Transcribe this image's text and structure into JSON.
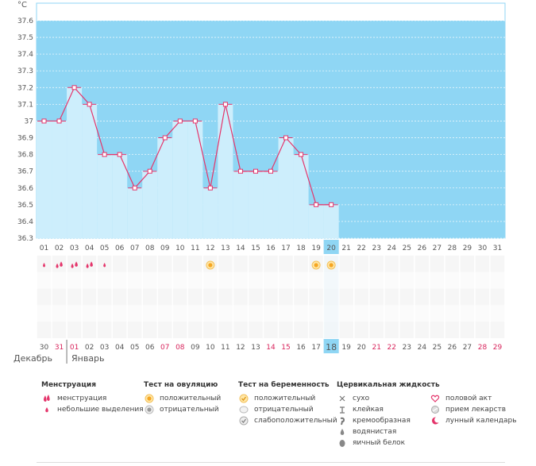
{
  "chart_data": {
    "type": "line",
    "unit_label": "°C",
    "ylim": [
      36.3,
      37.6
    ],
    "y_ticks": [
      "36.3",
      "36.4",
      "36.5",
      "36.6",
      "36.7",
      "36.8",
      "36.9",
      "37",
      "37.1",
      "37.2",
      "37.3",
      "37.4",
      "37.5",
      "37.6"
    ],
    "day_labels": [
      "01",
      "02",
      "03",
      "04",
      "05",
      "06",
      "07",
      "08",
      "09",
      "10",
      "11",
      "12",
      "13",
      "14",
      "15",
      "16",
      "17",
      "18",
      "19",
      "20",
      "21",
      "22",
      "23",
      "24",
      "25",
      "26",
      "27",
      "28",
      "29",
      "30",
      "31"
    ],
    "highlighted_day_index": 19,
    "temperatures": [
      37.0,
      37.0,
      37.2,
      37.1,
      36.8,
      36.8,
      36.6,
      36.7,
      36.9,
      37.0,
      37.0,
      36.6,
      37.1,
      36.7,
      36.7,
      36.7,
      36.9,
      36.8,
      36.5,
      36.5
    ],
    "menstruation_marks": [
      {
        "day_index": 0,
        "type": "light"
      },
      {
        "day_index": 1,
        "type": "menstruation"
      },
      {
        "day_index": 2,
        "type": "menstruation"
      },
      {
        "day_index": 3,
        "type": "menstruation"
      },
      {
        "day_index": 4,
        "type": "light"
      }
    ],
    "ovulation_marks": [
      {
        "day_index": 11,
        "type": "positive"
      },
      {
        "day_index": 18,
        "type": "positive"
      },
      {
        "day_index": 19,
        "type": "positive"
      }
    ],
    "cycle_days": [
      {
        "label": "30",
        "red": false
      },
      {
        "label": "31",
        "red": true
      },
      {
        "label": "01",
        "red": true
      },
      {
        "label": "02",
        "red": false
      },
      {
        "label": "03",
        "red": false
      },
      {
        "label": "04",
        "red": false
      },
      {
        "label": "05",
        "red": false
      },
      {
        "label": "06",
        "red": false
      },
      {
        "label": "07",
        "red": true
      },
      {
        "label": "08",
        "red": true
      },
      {
        "label": "09",
        "red": false
      },
      {
        "label": "10",
        "red": false
      },
      {
        "label": "11",
        "red": false
      },
      {
        "label": "12",
        "red": false
      },
      {
        "label": "13",
        "red": false
      },
      {
        "label": "14",
        "red": true
      },
      {
        "label": "15",
        "red": true
      },
      {
        "label": "16",
        "red": false
      },
      {
        "label": "17",
        "red": false
      },
      {
        "label": "18",
        "red": false
      },
      {
        "label": "19",
        "red": false
      },
      {
        "label": "20",
        "red": false
      },
      {
        "label": "21",
        "red": true
      },
      {
        "label": "22",
        "red": true
      },
      {
        "label": "23",
        "red": false
      },
      {
        "label": "24",
        "red": false
      },
      {
        "label": "25",
        "red": false
      },
      {
        "label": "26",
        "red": false
      },
      {
        "label": "27",
        "red": false
      },
      {
        "label": "28",
        "red": true
      },
      {
        "label": "29",
        "red": true
      }
    ],
    "highlighted_cycle_index": 19
  },
  "months": {
    "left": "Декабрь",
    "right": "Январь"
  },
  "legend": {
    "menstruation": {
      "title": "Менструация",
      "items": [
        "менструация",
        "небольшие выделения"
      ]
    },
    "ovulation_test": {
      "title": "Тест на овуляцию",
      "items": [
        "положительный",
        "отрицательный"
      ]
    },
    "pregnancy_test": {
      "title": "Тест на беременность",
      "items": [
        "положительный",
        "отрицательный",
        "слабоположительный"
      ]
    },
    "cervical_fluid": {
      "title": "Цервикальная жидкость",
      "items": [
        "сухо",
        "клейкая",
        "кремообразная",
        "водянистая",
        "яичный белок"
      ]
    },
    "other": {
      "items": [
        "половой акт",
        "прием лекарств",
        "лунный календарь"
      ]
    }
  },
  "colors": {
    "plot_bg": "#8fd6f4",
    "bar_fill": "#cdeefc",
    "line": "#e4356b",
    "highlight": "#8fd6f4",
    "red_text": "#d8245c"
  }
}
